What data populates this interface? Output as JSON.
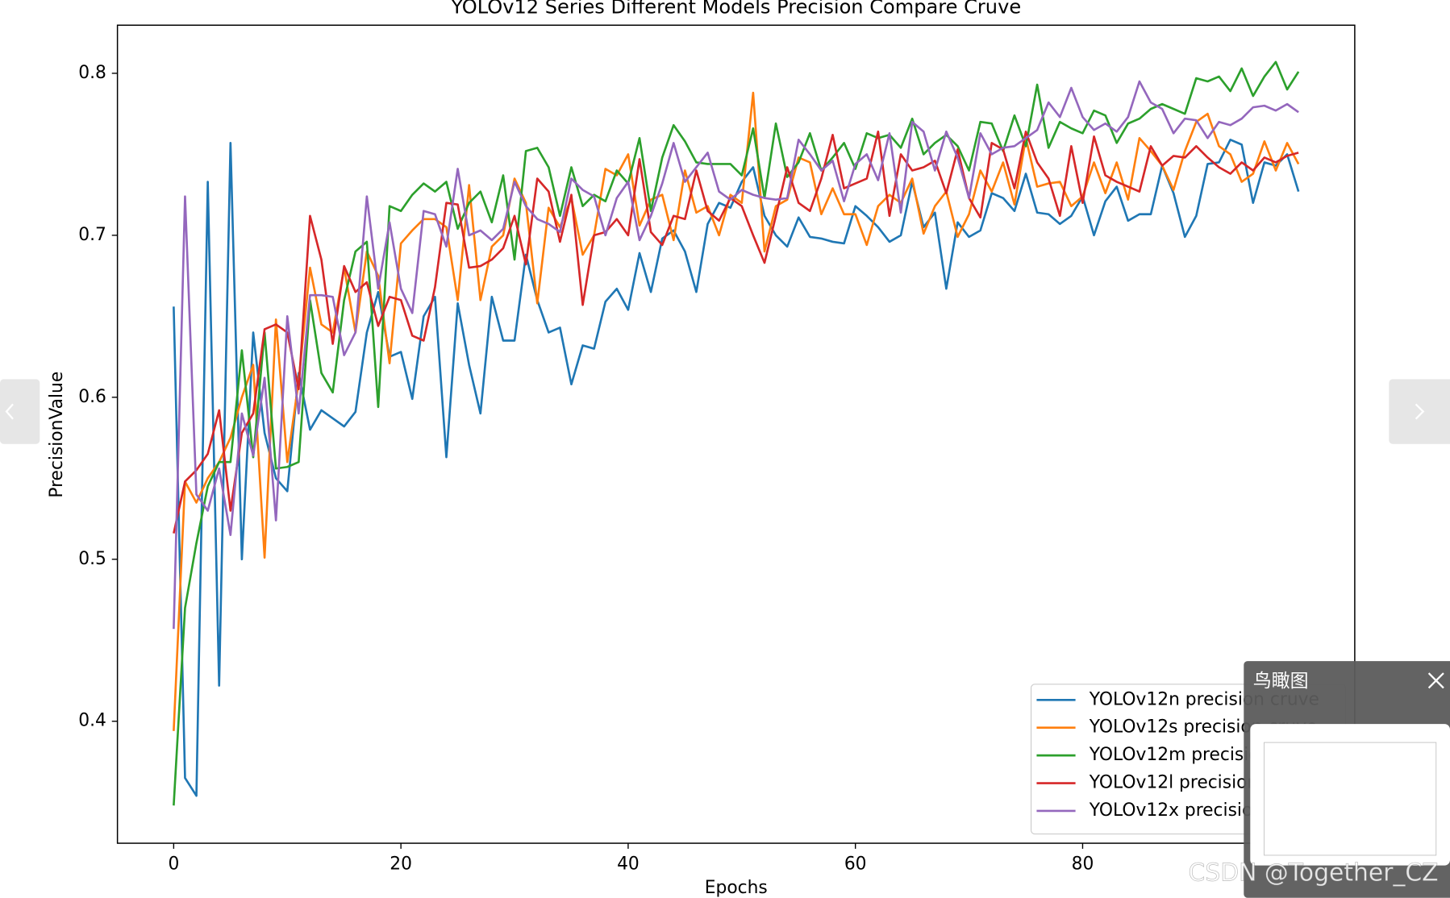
{
  "chart_data": {
    "type": "line",
    "title": "YOLOv12 Series Different Models Precision Compare Cruve",
    "x_label": "Epochs",
    "y_label": "PrecisionValue",
    "x": [
      0,
      1,
      2,
      3,
      4,
      5,
      6,
      7,
      8,
      9,
      10,
      11,
      12,
      13,
      14,
      15,
      16,
      17,
      18,
      19,
      20,
      21,
      22,
      23,
      24,
      25,
      26,
      27,
      28,
      29,
      30,
      31,
      32,
      33,
      34,
      35,
      36,
      37,
      38,
      39,
      40,
      41,
      42,
      43,
      44,
      45,
      46,
      47,
      48,
      49,
      50,
      51,
      52,
      53,
      54,
      55,
      56,
      57,
      58,
      59,
      60,
      61,
      62,
      63,
      64,
      65,
      66,
      67,
      68,
      69,
      70,
      71,
      72,
      73,
      74,
      75,
      76,
      77,
      78,
      79,
      80,
      81,
      82,
      83,
      84,
      85,
      86,
      87,
      88,
      89,
      90,
      91,
      92,
      93,
      94,
      95,
      96,
      97,
      98,
      99
    ],
    "series": [
      {
        "name": "YOLOv12n precision cruve",
        "color": "#1f77b4",
        "values": [
          0.656,
          0.365,
          0.354,
          0.733,
          0.422,
          0.757,
          0.5,
          0.64,
          0.578,
          0.55,
          0.542,
          0.615,
          0.58,
          0.592,
          0.587,
          0.582,
          0.591,
          0.64,
          0.665,
          0.625,
          0.628,
          0.599,
          0.65,
          0.662,
          0.563,
          0.658,
          0.62,
          0.59,
          0.662,
          0.635,
          0.635,
          0.688,
          0.66,
          0.64,
          0.643,
          0.608,
          0.632,
          0.63,
          0.659,
          0.667,
          0.654,
          0.689,
          0.665,
          0.698,
          0.703,
          0.69,
          0.665,
          0.707,
          0.72,
          0.717,
          0.733,
          0.742,
          0.712,
          0.7,
          0.693,
          0.711,
          0.699,
          0.698,
          0.696,
          0.695,
          0.718,
          0.712,
          0.705,
          0.696,
          0.7,
          0.733,
          0.705,
          0.714,
          0.667,
          0.708,
          0.699,
          0.703,
          0.726,
          0.723,
          0.715,
          0.738,
          0.714,
          0.713,
          0.707,
          0.712,
          0.724,
          0.7,
          0.721,
          0.73,
          0.709,
          0.713,
          0.713,
          0.743,
          0.726,
          0.699,
          0.712,
          0.744,
          0.745,
          0.759,
          0.756,
          0.72,
          0.745,
          0.743,
          0.75,
          0.727
        ]
      },
      {
        "name": "YOLOv12s precision cruve",
        "color": "#ff7f0e",
        "values": [
          0.394,
          0.548,
          0.535,
          0.55,
          0.56,
          0.575,
          0.6,
          0.62,
          0.501,
          0.648,
          0.56,
          0.61,
          0.68,
          0.645,
          0.64,
          0.68,
          0.64,
          0.69,
          0.675,
          0.621,
          0.695,
          0.703,
          0.71,
          0.71,
          0.705,
          0.66,
          0.731,
          0.66,
          0.693,
          0.7,
          0.735,
          0.72,
          0.658,
          0.717,
          0.705,
          0.723,
          0.688,
          0.7,
          0.741,
          0.737,
          0.75,
          0.706,
          0.722,
          0.725,
          0.697,
          0.74,
          0.714,
          0.718,
          0.7,
          0.725,
          0.72,
          0.788,
          0.69,
          0.718,
          0.722,
          0.748,
          0.745,
          0.713,
          0.729,
          0.713,
          0.713,
          0.694,
          0.718,
          0.725,
          0.72,
          0.735,
          0.701,
          0.718,
          0.727,
          0.699,
          0.713,
          0.74,
          0.727,
          0.745,
          0.719,
          0.76,
          0.73,
          0.732,
          0.733,
          0.718,
          0.724,
          0.745,
          0.726,
          0.745,
          0.722,
          0.76,
          0.752,
          0.743,
          0.728,
          0.752,
          0.77,
          0.775,
          0.755,
          0.75,
          0.733,
          0.738,
          0.758,
          0.74,
          0.757,
          0.744
        ]
      },
      {
        "name": "YOLOv12m precision cruve",
        "color": "#2ca02c",
        "values": [
          0.348,
          0.47,
          0.51,
          0.545,
          0.56,
          0.56,
          0.629,
          0.563,
          0.64,
          0.556,
          0.557,
          0.56,
          0.66,
          0.615,
          0.603,
          0.66,
          0.69,
          0.696,
          0.594,
          0.718,
          0.715,
          0.725,
          0.732,
          0.727,
          0.733,
          0.704,
          0.72,
          0.727,
          0.708,
          0.737,
          0.685,
          0.752,
          0.754,
          0.742,
          0.712,
          0.742,
          0.718,
          0.725,
          0.721,
          0.74,
          0.732,
          0.76,
          0.715,
          0.748,
          0.768,
          0.758,
          0.745,
          0.744,
          0.744,
          0.744,
          0.737,
          0.766,
          0.723,
          0.769,
          0.736,
          0.745,
          0.763,
          0.74,
          0.748,
          0.757,
          0.741,
          0.763,
          0.76,
          0.762,
          0.754,
          0.772,
          0.75,
          0.757,
          0.762,
          0.755,
          0.74,
          0.77,
          0.769,
          0.752,
          0.774,
          0.755,
          0.793,
          0.754,
          0.77,
          0.766,
          0.763,
          0.777,
          0.774,
          0.757,
          0.769,
          0.772,
          0.778,
          0.781,
          0.778,
          0.775,
          0.797,
          0.795,
          0.798,
          0.789,
          0.803,
          0.786,
          0.798,
          0.807,
          0.79,
          0.801
        ]
      },
      {
        "name": "YOLOv12l precision cruve",
        "color": "#d62728",
        "values": [
          0.516,
          0.548,
          0.555,
          0.565,
          0.592,
          0.53,
          0.578,
          0.59,
          0.642,
          0.645,
          0.64,
          0.605,
          0.712,
          0.685,
          0.633,
          0.681,
          0.665,
          0.671,
          0.644,
          0.662,
          0.66,
          0.638,
          0.635,
          0.668,
          0.72,
          0.719,
          0.68,
          0.681,
          0.685,
          0.692,
          0.712,
          0.682,
          0.735,
          0.727,
          0.696,
          0.725,
          0.657,
          0.7,
          0.702,
          0.71,
          0.7,
          0.747,
          0.702,
          0.694,
          0.712,
          0.71,
          0.74,
          0.715,
          0.709,
          0.723,
          0.718,
          0.7,
          0.683,
          0.712,
          0.742,
          0.72,
          0.715,
          0.735,
          0.762,
          0.729,
          0.732,
          0.735,
          0.764,
          0.712,
          0.75,
          0.74,
          0.742,
          0.746,
          0.726,
          0.753,
          0.723,
          0.711,
          0.757,
          0.753,
          0.729,
          0.764,
          0.745,
          0.735,
          0.712,
          0.755,
          0.72,
          0.761,
          0.737,
          0.733,
          0.73,
          0.727,
          0.755,
          0.743,
          0.749,
          0.748,
          0.755,
          0.748,
          0.742,
          0.738,
          0.745,
          0.74,
          0.748,
          0.745,
          0.749,
          0.751
        ]
      },
      {
        "name": "YOLOv12x precision cruve",
        "color": "#9467bd",
        "values": [
          0.457,
          0.724,
          0.54,
          0.53,
          0.556,
          0.515,
          0.59,
          0.564,
          0.612,
          0.524,
          0.65,
          0.59,
          0.663,
          0.663,
          0.662,
          0.626,
          0.64,
          0.724,
          0.667,
          0.708,
          0.667,
          0.652,
          0.715,
          0.713,
          0.693,
          0.741,
          0.7,
          0.703,
          0.697,
          0.704,
          0.733,
          0.718,
          0.71,
          0.707,
          0.702,
          0.735,
          0.728,
          0.724,
          0.7,
          0.723,
          0.733,
          0.697,
          0.712,
          0.732,
          0.757,
          0.733,
          0.742,
          0.751,
          0.727,
          0.722,
          0.728,
          0.725,
          0.723,
          0.722,
          0.723,
          0.759,
          0.75,
          0.74,
          0.746,
          0.721,
          0.744,
          0.75,
          0.734,
          0.763,
          0.714,
          0.77,
          0.764,
          0.74,
          0.764,
          0.748,
          0.723,
          0.763,
          0.75,
          0.754,
          0.755,
          0.76,
          0.765,
          0.782,
          0.773,
          0.791,
          0.773,
          0.765,
          0.769,
          0.764,
          0.773,
          0.795,
          0.782,
          0.778,
          0.763,
          0.772,
          0.771,
          0.76,
          0.77,
          0.768,
          0.772,
          0.779,
          0.78,
          0.777,
          0.781,
          0.776
        ]
      }
    ],
    "xlim": [
      -4.95,
      103.95
    ],
    "xticks": [
      0,
      20,
      40,
      60,
      80
    ],
    "ylim": [
      0.3247,
      0.8297
    ],
    "yticks": [
      0.4,
      0.5,
      0.6,
      0.7,
      0.8
    ],
    "legend": "lower right",
    "grid": false
  },
  "viewer": {
    "panel_title": "鸟瞰图",
    "watermark": "CSDN @Together_CZ"
  }
}
